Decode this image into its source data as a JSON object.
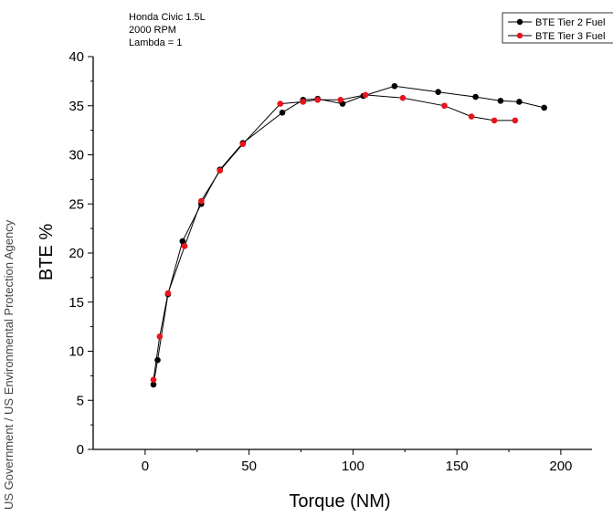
{
  "credit": "US Government / US Environmental Protection Agency",
  "chart_data": {
    "type": "line",
    "xlabel": "Torque (NM)",
    "ylabel": "BTE %",
    "xlim": [
      -25,
      215
    ],
    "ylim": [
      0,
      40
    ],
    "x_ticks": [
      0,
      50,
      100,
      150,
      200
    ],
    "y_ticks": [
      0,
      5,
      10,
      15,
      20,
      25,
      30,
      35,
      40
    ],
    "grid": false,
    "legend_position": "top-right",
    "annotations": [
      "Honda Civic 1.5L",
      "2000 RPM",
      "Lambda = 1"
    ],
    "series": [
      {
        "name": "BTE Tier 2 Fuel",
        "color": "#000000",
        "x": [
          4,
          6,
          11,
          18,
          27,
          36,
          47,
          66,
          76,
          83,
          95,
          105,
          120,
          141,
          159,
          171,
          180,
          192
        ],
        "y": [
          6.6,
          9.1,
          15.8,
          21.2,
          25.0,
          28.5,
          31.2,
          34.3,
          35.6,
          35.7,
          35.2,
          36.0,
          37.0,
          36.4,
          35.9,
          35.5,
          35.4,
          34.8
        ]
      },
      {
        "name": "BTE Tier 3 Fuel",
        "color": "#e8141c",
        "x": [
          4,
          7,
          11,
          19,
          27,
          36,
          47,
          65,
          76,
          83,
          94,
          106,
          124,
          144,
          157,
          168,
          178
        ],
        "y": [
          7.1,
          11.5,
          15.9,
          20.7,
          25.3,
          28.4,
          31.1,
          35.2,
          35.4,
          35.6,
          35.6,
          36.1,
          35.8,
          35.0,
          33.9,
          33.5,
          33.5
        ]
      }
    ]
  }
}
